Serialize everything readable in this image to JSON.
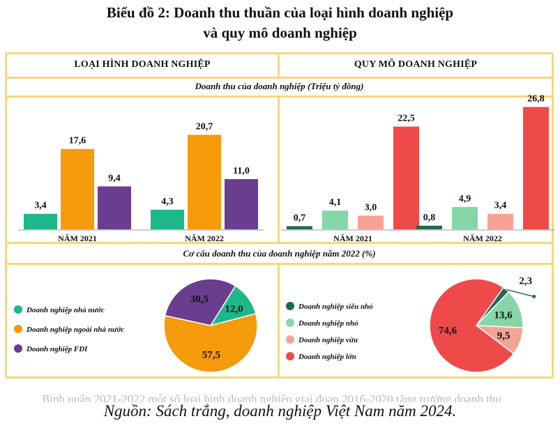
{
  "title_line1": "Biểu đồ 2: Doanh thu thuần của loại hình doanh nghiệp",
  "title_line2": "và quy mô doanh nghiệp",
  "left_header": "LOẠI HÌNH DOANH NGHIỆP",
  "right_header": "QUY MÔ DOANH NGHIỆP",
  "bar_subtitle": "Doanh thu của doanh nghiệp (Triệu tỷ đồng)",
  "pie_subtitle": "Cơ cấu doanh thu của doanh nghiệp năm 2022 (%)",
  "source": "Nguồn: Sách trắng, doanh nghiệp Việt Nam năm 2024.",
  "ghost_text": "Bình quân 2021-2022 một số loại hình doanh nghiệp giai đoạn 2016-2020 tăng trưởng doanh thu",
  "colors": {
    "frame": "#f6d77a",
    "nha_nuoc": "#1cb88a",
    "ngoai_nha_nuoc": "#f59a0a",
    "fdi": "#6a3d8f",
    "sieu_nho": "#1e6a4e",
    "nho": "#86d6a8",
    "vua": "#f6a294",
    "lon": "#ee4a4a"
  },
  "chart_data": [
    {
      "type": "bar",
      "title": "",
      "categories": [
        "NĂM 2021",
        "NĂM 2022"
      ],
      "series": [
        {
          "name": "Doanh nghiệp nhà nước",
          "values": [
            3.4,
            4.3
          ],
          "labels": [
            "3,4",
            "4,3"
          ],
          "color": "#1cb88a"
        },
        {
          "name": "Doanh nghiệp ngoài nhà nước",
          "values": [
            17.6,
            20.7
          ],
          "labels": [
            "17,6",
            "20,7"
          ],
          "color": "#f59a0a"
        },
        {
          "name": "Doanh nghiệp FDI",
          "values": [
            9.4,
            11.0
          ],
          "labels": [
            "9,4",
            "11,0"
          ],
          "color": "#6a3d8f"
        }
      ],
      "ylim": [
        0,
        30
      ]
    },
    {
      "type": "bar",
      "title": "",
      "categories": [
        "NĂM 2021",
        "NĂM 2022"
      ],
      "series": [
        {
          "name": "Doanh nghiệp siêu nhỏ",
          "values": [
            0.7,
            0.8
          ],
          "labels": [
            "0,7",
            "0,8"
          ],
          "color": "#1e6a4e"
        },
        {
          "name": "Doanh nghiệp nhỏ",
          "values": [
            4.1,
            4.9
          ],
          "labels": [
            "4,1",
            "4,9"
          ],
          "color": "#86d6a8"
        },
        {
          "name": "Doanh nghiệp vừa",
          "values": [
            3.0,
            3.4
          ],
          "labels": [
            "3,0",
            "3,4"
          ],
          "color": "#f6a294"
        },
        {
          "name": "Doanh nghiệp lớn",
          "values": [
            22.5,
            26.8
          ],
          "labels": [
            "22,5",
            "26,8"
          ],
          "color": "#ee4a4a"
        }
      ],
      "ylim": [
        0,
        30
      ]
    },
    {
      "type": "pie",
      "title": "",
      "legend": [
        "Doanh nghiệp nhà nước",
        "Doanh nghiệp ngoài nhà nước",
        "Doanh nghiệp FDI"
      ],
      "slices": [
        {
          "name": "Doanh nghiệp nhà nước",
          "value": 12.0,
          "label": "12,0",
          "color": "#1cb88a"
        },
        {
          "name": "Doanh nghiệp ngoài nhà nước",
          "value": 57.5,
          "label": "57,5",
          "color": "#f59a0a"
        },
        {
          "name": "Doanh nghiệp FDI",
          "value": 30.5,
          "label": "30,5",
          "color": "#6a3d8f"
        }
      ]
    },
    {
      "type": "pie",
      "title": "",
      "legend": [
        "Doanh nghiệp siêu nhỏ",
        "Doanh nghiệp nhỏ",
        "Doanh nghiệp vừa",
        "Doanh nghiệp lớn"
      ],
      "slices": [
        {
          "name": "Doanh nghiệp siêu nhỏ",
          "value": 2.3,
          "label": "2,3",
          "color": "#1e6a4e"
        },
        {
          "name": "Doanh nghiệp nhỏ",
          "value": 13.6,
          "label": "13,6",
          "color": "#86d6a8"
        },
        {
          "name": "Doanh nghiệp vừa",
          "value": 9.5,
          "label": "9,5",
          "color": "#f6a294"
        },
        {
          "name": "Doanh nghiệp lớn",
          "value": 74.6,
          "label": "74,6",
          "color": "#ee4a4a"
        }
      ]
    }
  ]
}
